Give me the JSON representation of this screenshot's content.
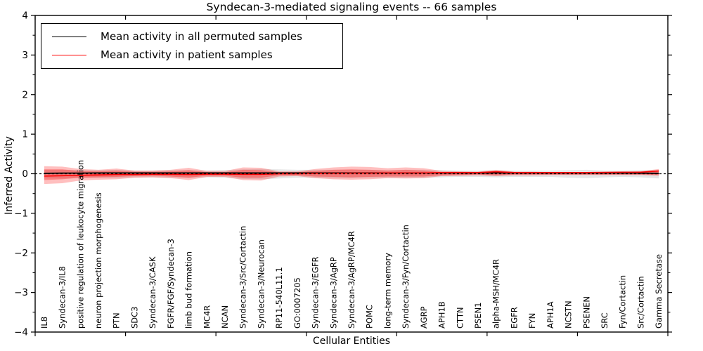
{
  "figure": {
    "title": "Syndecan-3-mediated signaling events -- 66 samples",
    "xlabel": "Cellular Entities",
    "ylabel": "Inferred Activity"
  },
  "legend": {
    "items": [
      {
        "label": "Mean activity in all permuted samples",
        "color": "#000000"
      },
      {
        "label": "Mean activity in patient samples",
        "color": "#ff0000"
      }
    ]
  },
  "axes": {
    "ylim": [
      -4,
      4
    ],
    "xlim": [
      0,
      35
    ],
    "ytick_values": [
      4,
      3,
      2,
      1,
      0,
      -1,
      -2,
      -3,
      -4
    ],
    "ytick_labels": [
      "4",
      "3",
      "2",
      "1",
      "0",
      "−1",
      "−2",
      "−3",
      "−4"
    ],
    "ytick_minor_step": 0.5,
    "xtick_values": [
      0,
      5,
      10,
      15,
      20,
      25,
      30,
      35
    ]
  },
  "colors": {
    "frame": "#000000",
    "permuted_line": "#000000",
    "patient_line": "#ff0000",
    "zero_line": "#000000",
    "permuted_band": "rgba(0,0,0,0.10)",
    "patient_band_outer": "rgba(255,0,0,0.25)",
    "patient_band_inner": "rgba(255,0,0,0.30)"
  },
  "chart_data": {
    "type": "line",
    "title": "Syndecan-3-mediated signaling events -- 66 samples",
    "xlabel": "Cellular Entities",
    "ylabel": "Inferred Activity",
    "ylim": [
      -4,
      4
    ],
    "grid": false,
    "legend_position": "upper left",
    "categories": [
      "IL8",
      "Syndecan-3/IL8",
      "positive regulation of leukocyte migration",
      "neuron projection morphogenesis",
      "PTN",
      "SDC3",
      "Syndecan-3/CASK",
      "FGFR/FGF/Syndecan-3",
      "limb bud formation",
      "MC4R",
      "NCAN",
      "Syndecan-3/Src/Cortactin",
      "Syndecan-3/Neurocan",
      "RP11-540L11.1",
      "GO:0007205",
      "Syndecan-3/EGFR",
      "Syndecan-3/AgRP",
      "Syndecan-3/AgRP/MC4R",
      "POMC",
      "long-term memory",
      "Syndecan-3/Fyn/Cortactin",
      "AGRP",
      "APH1B",
      "CTTN",
      "PSEN1",
      "alpha-MSH/MC4R",
      "EGFR",
      "FYN",
      "APH1A",
      "NCSTN",
      "PSENEN",
      "SRC",
      "Fyn/Cortactin",
      "Src/Cortactin",
      "Gamma Secretase"
    ],
    "series": [
      {
        "name": "Mean activity in all permuted samples",
        "color": "#000000",
        "values": [
          0.01,
          0.015,
          0.015,
          0.02,
          0.02,
          0.02,
          0.02,
          0.02,
          0.02,
          0.02,
          0.02,
          0.02,
          0.02,
          0.02,
          0.02,
          0.02,
          0.02,
          0.02,
          0.02,
          0.02,
          0.02,
          0.02,
          0.02,
          0.02,
          0.02,
          0.02,
          0.02,
          0.02,
          0.02,
          0.02,
          0.02,
          0.02,
          0.02,
          0.015,
          0.01
        ]
      },
      {
        "name": "Mean activity in patient samples",
        "color": "#ff0000",
        "values": [
          -0.06,
          -0.05,
          -0.04,
          -0.03,
          -0.02,
          -0.02,
          -0.015,
          -0.015,
          -0.02,
          -0.01,
          -0.01,
          -0.015,
          -0.015,
          0.0,
          0.0,
          0.01,
          0.01,
          0.015,
          0.015,
          0.02,
          0.02,
          0.02,
          0.03,
          0.03,
          0.03,
          0.05,
          0.03,
          0.03,
          0.03,
          0.03,
          0.03,
          0.035,
          0.04,
          0.04,
          0.07
        ]
      }
    ],
    "bands": [
      {
        "name": "permuted samples range",
        "color": "rgba(0,0,0,0.10)",
        "lo": [
          -0.12,
          -0.12,
          -0.1,
          -0.1,
          -0.11,
          -0.09,
          -0.09,
          -0.1,
          -0.1,
          -0.09,
          -0.1,
          -0.13,
          -0.14,
          -0.12,
          -0.1,
          -0.1,
          -0.11,
          -0.11,
          -0.1,
          -0.1,
          -0.1,
          -0.1,
          -0.09,
          -0.08,
          -0.08,
          -0.09,
          -0.08,
          -0.08,
          -0.08,
          -0.1,
          -0.11,
          -0.09,
          -0.08,
          -0.09,
          -0.12
        ],
        "hi": [
          0.1,
          0.1,
          0.09,
          0.09,
          0.1,
          0.08,
          0.08,
          0.09,
          0.09,
          0.08,
          0.09,
          0.11,
          0.12,
          0.11,
          0.1,
          0.1,
          0.1,
          0.1,
          0.1,
          0.09,
          0.1,
          0.1,
          0.09,
          0.08,
          0.08,
          0.09,
          0.08,
          0.08,
          0.08,
          0.09,
          0.1,
          0.08,
          0.08,
          0.09,
          0.1
        ]
      },
      {
        "name": "patient samples outer range",
        "color": "rgba(255,0,0,0.25)",
        "lo": [
          -0.26,
          -0.24,
          -0.17,
          -0.15,
          -0.14,
          -0.1,
          -0.09,
          -0.11,
          -0.16,
          -0.08,
          -0.08,
          -0.16,
          -0.17,
          -0.07,
          -0.06,
          -0.11,
          -0.14,
          -0.15,
          -0.14,
          -0.11,
          -0.12,
          -0.11,
          -0.06,
          -0.05,
          -0.04,
          -0.06,
          -0.04,
          -0.04,
          -0.03,
          -0.03,
          -0.03,
          -0.03,
          -0.03,
          -0.03,
          -0.05
        ],
        "hi": [
          0.19,
          0.18,
          0.12,
          0.1,
          0.13,
          0.08,
          0.08,
          0.1,
          0.15,
          0.07,
          0.07,
          0.16,
          0.15,
          0.06,
          0.06,
          0.12,
          0.16,
          0.18,
          0.17,
          0.14,
          0.16,
          0.14,
          0.07,
          0.06,
          0.05,
          0.1,
          0.05,
          0.05,
          0.04,
          0.04,
          0.04,
          0.04,
          0.05,
          0.06,
          0.12
        ]
      },
      {
        "name": "patient samples inner range",
        "color": "rgba(255,0,0,0.30)",
        "lo": [
          -0.16,
          -0.14,
          -0.1,
          -0.09,
          -0.08,
          -0.06,
          -0.05,
          -0.07,
          -0.1,
          -0.05,
          -0.05,
          -0.1,
          -0.1,
          -0.04,
          -0.04,
          -0.07,
          -0.08,
          -0.09,
          -0.08,
          -0.07,
          -0.07,
          -0.07,
          -0.04,
          -0.03,
          -0.02,
          -0.04,
          -0.02,
          -0.02,
          -0.02,
          -0.02,
          -0.02,
          -0.02,
          -0.02,
          -0.02,
          -0.03
        ],
        "hi": [
          0.11,
          0.11,
          0.07,
          0.06,
          0.08,
          0.05,
          0.05,
          0.06,
          0.09,
          0.04,
          0.04,
          0.1,
          0.09,
          0.04,
          0.04,
          0.07,
          0.1,
          0.11,
          0.1,
          0.08,
          0.1,
          0.08,
          0.04,
          0.04,
          0.03,
          0.06,
          0.03,
          0.03,
          0.02,
          0.02,
          0.02,
          0.02,
          0.03,
          0.04,
          0.07
        ]
      }
    ],
    "zero_line": {
      "y": 0,
      "style": "dashed",
      "color": "#000000"
    }
  }
}
